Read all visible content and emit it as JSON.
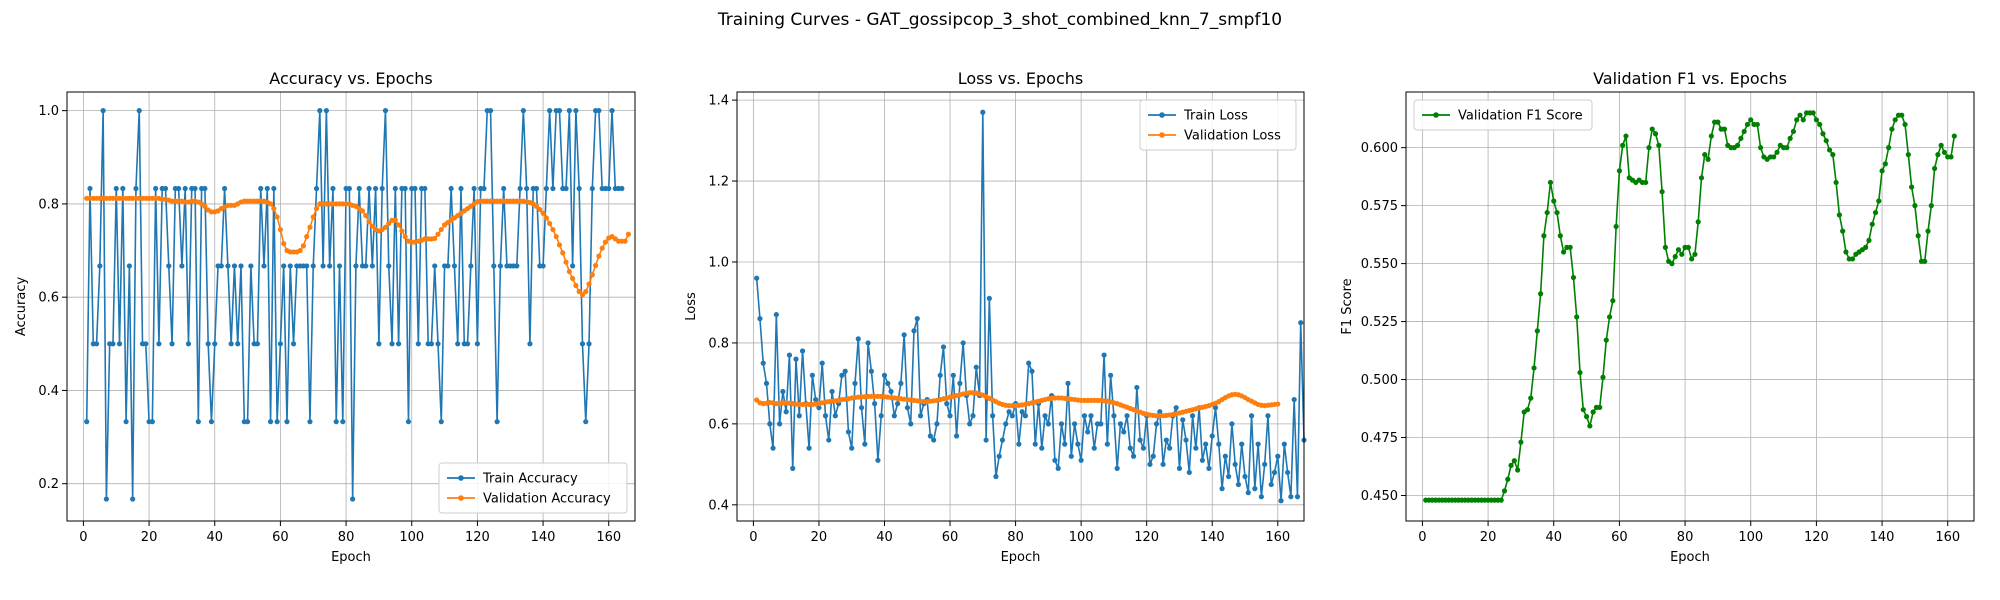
{
  "suptitle": "Training Curves - GAT_gossipcop_3_shot_combined_knn_7_smpf10",
  "colors": {
    "blue": "#1f77b4",
    "orange": "#ff7f0e",
    "green": "#008000",
    "grid": "#b0b0b0"
  },
  "chart_data": [
    {
      "type": "line",
      "title": "Accuracy vs. Epochs",
      "xlabel": "Epoch",
      "ylabel": "Accuracy",
      "xlim": [
        -5,
        168
      ],
      "ylim": [
        0.12,
        1.04
      ],
      "xticks": [
        0,
        20,
        40,
        60,
        80,
        100,
        120,
        140,
        160
      ],
      "yticks": [
        0.2,
        0.4,
        0.6,
        0.8,
        1.0
      ],
      "ytick_labels": [
        "0.2",
        "0.4",
        "0.6",
        "0.8",
        "1.0"
      ],
      "grid": true,
      "legend": "bottom-right",
      "series": [
        {
          "name": "Train Accuracy",
          "color": "#1f77b4",
          "values": [
            0.333,
            0.833,
            0.5,
            0.5,
            0.667,
            1.0,
            0.167,
            0.5,
            0.5,
            0.833,
            0.5,
            0.833,
            0.333,
            0.667,
            0.167,
            0.833,
            1.0,
            0.5,
            0.5,
            0.333,
            0.333,
            0.833,
            0.5,
            0.833,
            0.833,
            0.667,
            0.5,
            0.833,
            0.833,
            0.667,
            0.833,
            0.5,
            0.833,
            0.833,
            0.333,
            0.833,
            0.833,
            0.5,
            0.333,
            0.5,
            0.667,
            0.667,
            0.833,
            0.667,
            0.5,
            0.667,
            0.5,
            0.667,
            0.333,
            0.333,
            0.667,
            0.5,
            0.5,
            0.833,
            0.667,
            0.833,
            0.333,
            0.833,
            0.333,
            0.5,
            0.667,
            0.333,
            0.667,
            0.5,
            0.667,
            0.667,
            0.667,
            0.667,
            0.333,
            0.667,
            0.833,
            1.0,
            0.667,
            1.0,
            0.667,
            0.833,
            0.333,
            0.667,
            0.333,
            0.833,
            0.833,
            0.167,
            0.667,
            0.833,
            0.667,
            0.667,
            0.833,
            0.667,
            0.833,
            0.5,
            0.833,
            1.0,
            0.667,
            0.5,
            0.833,
            0.5,
            0.833,
            0.833,
            0.333,
            0.833,
            0.833,
            0.5,
            0.833,
            0.833,
            0.5,
            0.5,
            0.667,
            0.5,
            0.333,
            0.667,
            0.667,
            0.833,
            0.667,
            0.5,
            0.833,
            0.5,
            0.5,
            0.667,
            0.833,
            0.5,
            0.833,
            0.833,
            1.0,
            1.0,
            0.667,
            0.333,
            0.667,
            0.833,
            0.667,
            0.667,
            0.667,
            0.667,
            0.833,
            1.0,
            0.833,
            0.5,
            0.833,
            0.833,
            0.667,
            0.667,
            0.833,
            1.0,
            0.833,
            1.0,
            1.0,
            0.833,
            0.833,
            1.0,
            0.667,
            1.0,
            0.833,
            0.5,
            0.333,
            0.5,
            0.833,
            1.0,
            1.0,
            0.833,
            0.833,
            0.833,
            1.0,
            0.833,
            0.833,
            0.833
          ]
        },
        {
          "name": "Validation Accuracy",
          "color": "#ff7f0e",
          "values": [
            0.812,
            0.812,
            0.812,
            0.812,
            0.812,
            0.812,
            0.812,
            0.812,
            0.812,
            0.812,
            0.812,
            0.812,
            0.812,
            0.812,
            0.812,
            0.812,
            0.812,
            0.812,
            0.812,
            0.812,
            0.812,
            0.812,
            0.812,
            0.81,
            0.81,
            0.808,
            0.806,
            0.806,
            0.806,
            0.806,
            0.804,
            0.804,
            0.806,
            0.806,
            0.804,
            0.8,
            0.795,
            0.787,
            0.783,
            0.783,
            0.785,
            0.79,
            0.793,
            0.797,
            0.797,
            0.797,
            0.8,
            0.804,
            0.806,
            0.806,
            0.806,
            0.806,
            0.806,
            0.806,
            0.806,
            0.804,
            0.8,
            0.79,
            0.772,
            0.745,
            0.715,
            0.7,
            0.697,
            0.697,
            0.697,
            0.7,
            0.71,
            0.73,
            0.75,
            0.772,
            0.79,
            0.8,
            0.8,
            0.8,
            0.8,
            0.8,
            0.8,
            0.8,
            0.8,
            0.8,
            0.8,
            0.797,
            0.795,
            0.79,
            0.785,
            0.775,
            0.762,
            0.752,
            0.745,
            0.742,
            0.745,
            0.75,
            0.758,
            0.765,
            0.765,
            0.755,
            0.742,
            0.73,
            0.72,
            0.718,
            0.718,
            0.72,
            0.722,
            0.725,
            0.725,
            0.725,
            0.726,
            0.735,
            0.745,
            0.755,
            0.76,
            0.765,
            0.77,
            0.775,
            0.78,
            0.785,
            0.79,
            0.795,
            0.8,
            0.805,
            0.806,
            0.806,
            0.806,
            0.806,
            0.806,
            0.806,
            0.806,
            0.806,
            0.806,
            0.806,
            0.806,
            0.806,
            0.806,
            0.806,
            0.805,
            0.803,
            0.8,
            0.795,
            0.788,
            0.78,
            0.77,
            0.758,
            0.745,
            0.73,
            0.712,
            0.695,
            0.675,
            0.655,
            0.64,
            0.625,
            0.612,
            0.605,
            0.612,
            0.628,
            0.648,
            0.668,
            0.688,
            0.705,
            0.718,
            0.727,
            0.73,
            0.725,
            0.72,
            0.72,
            0.72,
            0.735
          ]
        }
      ]
    },
    {
      "type": "line",
      "title": "Loss vs. Epochs",
      "xlabel": "Epoch",
      "ylabel": "Loss",
      "xlim": [
        -5,
        168
      ],
      "ylim": [
        0.36,
        1.42
      ],
      "xticks": [
        0,
        20,
        40,
        60,
        80,
        100,
        120,
        140,
        160
      ],
      "yticks": [
        0.4,
        0.6,
        0.8,
        1.0,
        1.2,
        1.4
      ],
      "ytick_labels": [
        "0.4",
        "0.6",
        "0.8",
        "1.0",
        "1.2",
        "1.4"
      ],
      "grid": true,
      "legend": "top-right",
      "series": [
        {
          "name": "Train Loss",
          "color": "#1f77b4",
          "values": [
            0.96,
            0.86,
            0.75,
            0.7,
            0.6,
            0.54,
            0.87,
            0.6,
            0.68,
            0.63,
            0.77,
            0.49,
            0.76,
            0.62,
            0.78,
            0.65,
            0.54,
            0.72,
            0.66,
            0.64,
            0.75,
            0.62,
            0.56,
            0.68,
            0.62,
            0.65,
            0.72,
            0.73,
            0.58,
            0.54,
            0.7,
            0.81,
            0.64,
            0.55,
            0.8,
            0.73,
            0.65,
            0.51,
            0.62,
            0.72,
            0.7,
            0.68,
            0.62,
            0.65,
            0.7,
            0.82,
            0.64,
            0.6,
            0.83,
            0.86,
            0.62,
            0.65,
            0.66,
            0.57,
            0.56,
            0.6,
            0.72,
            0.79,
            0.65,
            0.62,
            0.72,
            0.57,
            0.7,
            0.8,
            0.67,
            0.6,
            0.62,
            0.74,
            0.67,
            1.37,
            0.56,
            0.91,
            0.62,
            0.47,
            0.52,
            0.56,
            0.6,
            0.63,
            0.62,
            0.65,
            0.55,
            0.63,
            0.62,
            0.75,
            0.73,
            0.55,
            0.65,
            0.54,
            0.62,
            0.6,
            0.67,
            0.51,
            0.49,
            0.6,
            0.55,
            0.7,
            0.52,
            0.6,
            0.55,
            0.51,
            0.62,
            0.58,
            0.62,
            0.54,
            0.6,
            0.6,
            0.77,
            0.55,
            0.72,
            0.62,
            0.49,
            0.6,
            0.58,
            0.62,
            0.54,
            0.52,
            0.69,
            0.56,
            0.54,
            0.62,
            0.5,
            0.52,
            0.6,
            0.63,
            0.5,
            0.56,
            0.54,
            0.62,
            0.64,
            0.49,
            0.61,
            0.56,
            0.48,
            0.62,
            0.54,
            0.64,
            0.51,
            0.55,
            0.49,
            0.57,
            0.64,
            0.55,
            0.44,
            0.52,
            0.47,
            0.6,
            0.5,
            0.45,
            0.55,
            0.47,
            0.43,
            0.62,
            0.44,
            0.55,
            0.42,
            0.5,
            0.62,
            0.45,
            0.48,
            0.52,
            0.41,
            0.55,
            0.48,
            0.42,
            0.66,
            0.42,
            0.85,
            0.56
          ]
        },
        {
          "name": "Validation Loss",
          "color": "#ff7f0e",
          "values": [
            0.659,
            0.652,
            0.65,
            0.651,
            0.653,
            0.652,
            0.65,
            0.651,
            0.652,
            0.652,
            0.651,
            0.65,
            0.649,
            0.648,
            0.648,
            0.648,
            0.648,
            0.648,
            0.649,
            0.65,
            0.652,
            0.654,
            0.655,
            0.656,
            0.657,
            0.658,
            0.66,
            0.661,
            0.662,
            0.664,
            0.665,
            0.666,
            0.667,
            0.667,
            0.668,
            0.668,
            0.668,
            0.668,
            0.668,
            0.667,
            0.666,
            0.665,
            0.664,
            0.663,
            0.662,
            0.661,
            0.66,
            0.659,
            0.658,
            0.657,
            0.656,
            0.655,
            0.655,
            0.656,
            0.657,
            0.658,
            0.66,
            0.662,
            0.664,
            0.666,
            0.668,
            0.67,
            0.672,
            0.674,
            0.676,
            0.677,
            0.677,
            0.676,
            0.674,
            0.671,
            0.667,
            0.663,
            0.659,
            0.655,
            0.651,
            0.648,
            0.646,
            0.645,
            0.645,
            0.645,
            0.646,
            0.647,
            0.648,
            0.65,
            0.652,
            0.654,
            0.656,
            0.658,
            0.66,
            0.662,
            0.663,
            0.664,
            0.664,
            0.664,
            0.663,
            0.662,
            0.661,
            0.66,
            0.659,
            0.658,
            0.658,
            0.658,
            0.658,
            0.658,
            0.658,
            0.658,
            0.657,
            0.656,
            0.654,
            0.652,
            0.65,
            0.647,
            0.644,
            0.641,
            0.638,
            0.635,
            0.632,
            0.629,
            0.626,
            0.624,
            0.622,
            0.621,
            0.62,
            0.62,
            0.62,
            0.621,
            0.622,
            0.623,
            0.625,
            0.627,
            0.629,
            0.631,
            0.633,
            0.635,
            0.637,
            0.639,
            0.641,
            0.643,
            0.645,
            0.648,
            0.651,
            0.655,
            0.66,
            0.665,
            0.669,
            0.672,
            0.673,
            0.672,
            0.669,
            0.665,
            0.66,
            0.656,
            0.652,
            0.648,
            0.646,
            0.645,
            0.646,
            0.647,
            0.648,
            0.649
          ]
        }
      ]
    },
    {
      "type": "line",
      "title": "Validation F1 vs. Epochs",
      "xlabel": "Epoch",
      "ylabel": "F1 Score",
      "xlim": [
        -5,
        168
      ],
      "ylim": [
        0.439,
        0.624
      ],
      "xticks": [
        0,
        20,
        40,
        60,
        80,
        100,
        120,
        140,
        160
      ],
      "yticks": [
        0.45,
        0.475,
        0.5,
        0.525,
        0.55,
        0.575,
        0.6
      ],
      "ytick_labels": [
        "0.450",
        "0.475",
        "0.500",
        "0.525",
        "0.550",
        "0.575",
        "0.600"
      ],
      "grid": true,
      "legend": "top-left",
      "series": [
        {
          "name": "Validation F1 Score",
          "color": "#008000",
          "values": [
            0.448,
            0.448,
            0.448,
            0.448,
            0.448,
            0.448,
            0.448,
            0.448,
            0.448,
            0.448,
            0.448,
            0.448,
            0.448,
            0.448,
            0.448,
            0.448,
            0.448,
            0.448,
            0.448,
            0.448,
            0.448,
            0.448,
            0.448,
            0.448,
            0.452,
            0.457,
            0.463,
            0.465,
            0.461,
            0.473,
            0.486,
            0.487,
            0.492,
            0.505,
            0.521,
            0.537,
            0.562,
            0.572,
            0.585,
            0.577,
            0.572,
            0.562,
            0.555,
            0.557,
            0.557,
            0.544,
            0.527,
            0.503,
            0.487,
            0.484,
            0.48,
            0.486,
            0.488,
            0.488,
            0.501,
            0.517,
            0.527,
            0.534,
            0.566,
            0.59,
            0.601,
            0.605,
            0.587,
            0.586,
            0.585,
            0.586,
            0.585,
            0.585,
            0.6,
            0.608,
            0.606,
            0.601,
            0.581,
            0.557,
            0.551,
            0.55,
            0.553,
            0.556,
            0.554,
            0.557,
            0.557,
            0.552,
            0.554,
            0.568,
            0.587,
            0.597,
            0.595,
            0.605,
            0.611,
            0.611,
            0.608,
            0.608,
            0.601,
            0.6,
            0.6,
            0.601,
            0.604,
            0.607,
            0.61,
            0.612,
            0.61,
            0.61,
            0.6,
            0.596,
            0.595,
            0.596,
            0.596,
            0.598,
            0.601,
            0.6,
            0.6,
            0.604,
            0.607,
            0.612,
            0.614,
            0.612,
            0.615,
            0.615,
            0.615,
            0.612,
            0.61,
            0.606,
            0.603,
            0.599,
            0.597,
            0.585,
            0.571,
            0.564,
            0.555,
            0.552,
            0.552,
            0.554,
            0.555,
            0.556,
            0.557,
            0.56,
            0.567,
            0.572,
            0.577,
            0.59,
            0.593,
            0.6,
            0.608,
            0.612,
            0.614,
            0.614,
            0.61,
            0.597,
            0.583,
            0.575,
            0.562,
            0.551,
            0.551,
            0.564,
            0.575,
            0.591,
            0.597,
            0.601,
            0.598,
            0.596,
            0.596,
            0.605
          ]
        }
      ]
    }
  ]
}
